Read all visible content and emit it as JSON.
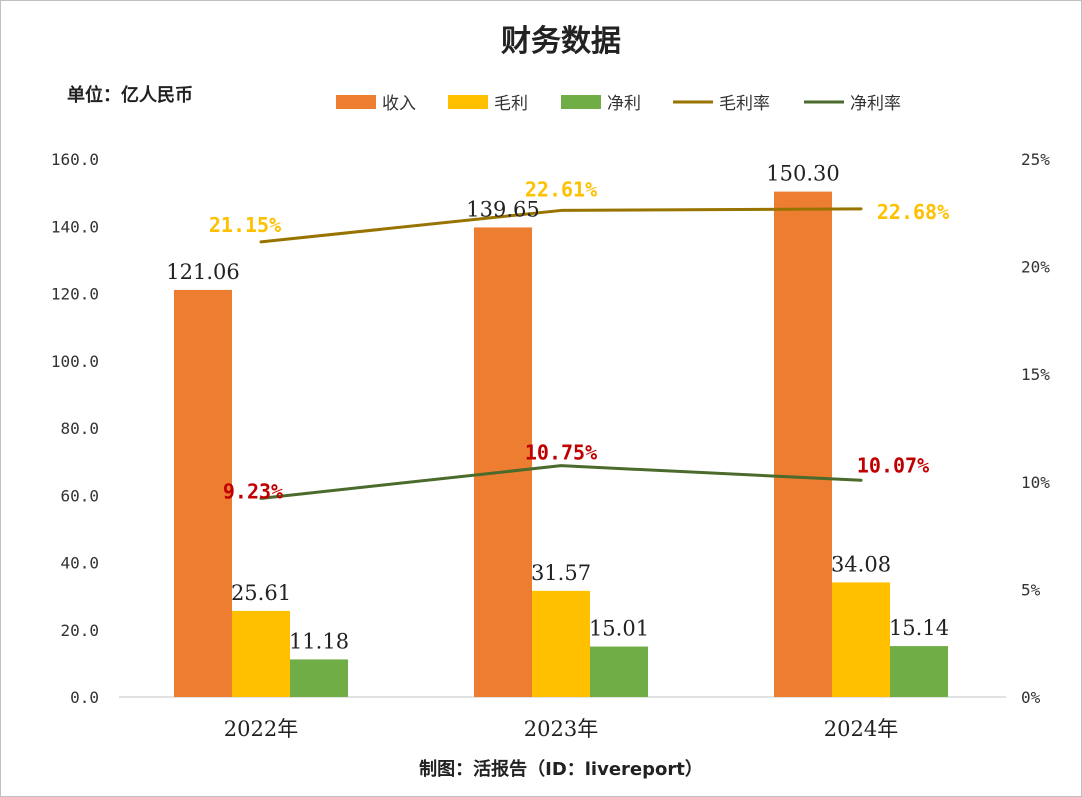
{
  "chart_data": {
    "type": "bar",
    "title": "财务数据",
    "unit_label": "单位：亿人民币",
    "footer": "制图：活报告（ID：livereport）",
    "categories": [
      "2022年",
      "2023年",
      "2024年"
    ],
    "bar_series": [
      {
        "name": "收入",
        "color": "#ED7D31",
        "values": [
          121.06,
          139.65,
          150.3
        ],
        "labels": [
          "121.06",
          "139.65",
          "150.30"
        ]
      },
      {
        "name": "毛利",
        "color": "#FFC000",
        "values": [
          25.61,
          31.57,
          34.08
        ],
        "labels": [
          "25.61",
          "31.57",
          "34.08"
        ]
      },
      {
        "name": "净利",
        "color": "#70AD47",
        "values": [
          11.18,
          15.01,
          15.14
        ],
        "labels": [
          "11.18",
          "15.01",
          "15.14"
        ]
      }
    ],
    "line_series": [
      {
        "name": "毛利率",
        "color": "#997300",
        "label_color": "#FFC000",
        "values": [
          21.15,
          22.61,
          22.68
        ],
        "labels": [
          "21.15%",
          "22.61%",
          "22.68%"
        ]
      },
      {
        "name": "净利率",
        "color": "#4A6B2B",
        "label_color": "#C00000",
        "values": [
          9.23,
          10.75,
          10.07
        ],
        "labels": [
          "9.23%",
          "10.75%",
          "10.07%"
        ]
      }
    ],
    "y_left": {
      "min": 0,
      "max": 160,
      "ticks": [
        "0.0",
        "20.0",
        "40.0",
        "60.0",
        "80.0",
        "100.0",
        "120.0",
        "140.0",
        "160.0"
      ]
    },
    "y_right": {
      "min": 0,
      "max": 25,
      "ticks": [
        "0%",
        "5%",
        "10%",
        "15%",
        "20%",
        "25%"
      ]
    },
    "legend_position": "top",
    "grid": false
  }
}
